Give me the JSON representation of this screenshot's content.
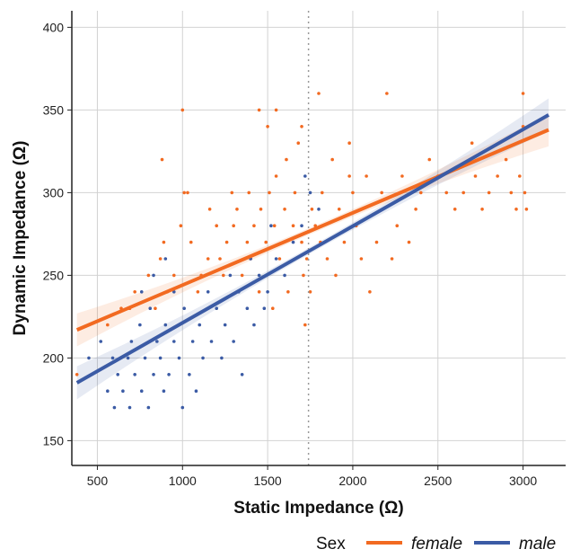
{
  "chart_data": {
    "type": "scatter",
    "xlabel": "Static Impedance (Ω)",
    "ylabel": "Dynamic Impedance (Ω)",
    "xlim": [
      350,
      3250
    ],
    "ylim": [
      135,
      410
    ],
    "x_ticks": [
      500,
      1000,
      1500,
      2000,
      2500,
      3000
    ],
    "y_ticks": [
      150,
      200,
      250,
      300,
      350,
      400
    ],
    "x_tick_labels": [
      "500",
      "1000",
      "1500",
      "2000",
      "2500",
      "3000"
    ],
    "y_tick_labels": [
      "150",
      "200",
      "250",
      "300",
      "350",
      "400"
    ],
    "grid": true,
    "legend_placement": "bottom",
    "legend_title": "Sex",
    "vline": {
      "x": 1740,
      "style": "dotted",
      "color": "#999999"
    },
    "series": [
      {
        "name": "female",
        "color": "#f26a21",
        "fit": {
          "x": [
            380,
            3150
          ],
          "y": [
            217,
            338
          ]
        },
        "points": [
          [
            380,
            190
          ],
          [
            560,
            220
          ],
          [
            640,
            230
          ],
          [
            690,
            230
          ],
          [
            720,
            240
          ],
          [
            800,
            250
          ],
          [
            840,
            230
          ],
          [
            870,
            260
          ],
          [
            880,
            320
          ],
          [
            890,
            270
          ],
          [
            910,
            240
          ],
          [
            950,
            250
          ],
          [
            990,
            280
          ],
          [
            1000,
            350
          ],
          [
            1010,
            300
          ],
          [
            1030,
            300
          ],
          [
            1050,
            270
          ],
          [
            1090,
            240
          ],
          [
            1110,
            250
          ],
          [
            1150,
            260
          ],
          [
            1160,
            290
          ],
          [
            1200,
            280
          ],
          [
            1220,
            260
          ],
          [
            1240,
            250
          ],
          [
            1260,
            270
          ],
          [
            1290,
            300
          ],
          [
            1300,
            280
          ],
          [
            1320,
            290
          ],
          [
            1350,
            250
          ],
          [
            1380,
            270
          ],
          [
            1390,
            300
          ],
          [
            1400,
            260
          ],
          [
            1420,
            280
          ],
          [
            1450,
            240
          ],
          [
            1460,
            290
          ],
          [
            1490,
            270
          ],
          [
            1500,
            340
          ],
          [
            1510,
            300
          ],
          [
            1530,
            230
          ],
          [
            1540,
            280
          ],
          [
            1550,
            310
          ],
          [
            1570,
            260
          ],
          [
            1600,
            290
          ],
          [
            1610,
            320
          ],
          [
            1620,
            240
          ],
          [
            1650,
            280
          ],
          [
            1660,
            300
          ],
          [
            1680,
            330
          ],
          [
            1700,
            270
          ],
          [
            1710,
            250
          ],
          [
            1720,
            220
          ],
          [
            1730,
            260
          ],
          [
            1750,
            240
          ],
          [
            1760,
            290
          ],
          [
            1780,
            280
          ],
          [
            1800,
            360
          ],
          [
            1810,
            270
          ],
          [
            1820,
            300
          ],
          [
            1850,
            260
          ],
          [
            1880,
            320
          ],
          [
            1900,
            250
          ],
          [
            1920,
            290
          ],
          [
            1950,
            270
          ],
          [
            1980,
            330
          ],
          [
            2000,
            300
          ],
          [
            2020,
            280
          ],
          [
            2050,
            260
          ],
          [
            2080,
            310
          ],
          [
            2100,
            240
          ],
          [
            2140,
            270
          ],
          [
            2170,
            300
          ],
          [
            2200,
            360
          ],
          [
            2230,
            260
          ],
          [
            2260,
            280
          ],
          [
            2290,
            310
          ],
          [
            2330,
            270
          ],
          [
            2370,
            290
          ],
          [
            2400,
            300
          ],
          [
            2450,
            320
          ],
          [
            2500,
            310
          ],
          [
            2550,
            300
          ],
          [
            2600,
            290
          ],
          [
            2650,
            300
          ],
          [
            2700,
            330
          ],
          [
            2720,
            310
          ],
          [
            2760,
            290
          ],
          [
            2800,
            300
          ],
          [
            2850,
            310
          ],
          [
            2900,
            320
          ],
          [
            2930,
            300
          ],
          [
            2960,
            290
          ],
          [
            2980,
            310
          ],
          [
            3000,
            340
          ],
          [
            3000,
            360
          ],
          [
            3010,
            300
          ],
          [
            3020,
            290
          ],
          [
            1450,
            350
          ],
          [
            1550,
            350
          ],
          [
            1700,
            340
          ],
          [
            1980,
            310
          ]
        ]
      },
      {
        "name": "male",
        "color": "#3b5ba5",
        "fit": {
          "x": [
            380,
            3150
          ],
          "y": [
            185,
            347
          ]
        },
        "points": [
          [
            450,
            200
          ],
          [
            520,
            210
          ],
          [
            560,
            180
          ],
          [
            590,
            200
          ],
          [
            600,
            170
          ],
          [
            620,
            190
          ],
          [
            650,
            180
          ],
          [
            680,
            200
          ],
          [
            690,
            170
          ],
          [
            700,
            210
          ],
          [
            720,
            190
          ],
          [
            750,
            220
          ],
          [
            760,
            180
          ],
          [
            780,
            200
          ],
          [
            800,
            170
          ],
          [
            810,
            230
          ],
          [
            830,
            190
          ],
          [
            850,
            210
          ],
          [
            870,
            200
          ],
          [
            890,
            180
          ],
          [
            900,
            220
          ],
          [
            920,
            190
          ],
          [
            950,
            210
          ],
          [
            980,
            200
          ],
          [
            1000,
            170
          ],
          [
            1010,
            230
          ],
          [
            1040,
            190
          ],
          [
            1060,
            210
          ],
          [
            1080,
            180
          ],
          [
            1100,
            220
          ],
          [
            1120,
            200
          ],
          [
            1150,
            240
          ],
          [
            1170,
            210
          ],
          [
            1200,
            230
          ],
          [
            1230,
            200
          ],
          [
            1250,
            220
          ],
          [
            1280,
            250
          ],
          [
            1300,
            210
          ],
          [
            1330,
            240
          ],
          [
            1350,
            190
          ],
          [
            1380,
            230
          ],
          [
            1400,
            260
          ],
          [
            1420,
            220
          ],
          [
            1450,
            250
          ],
          [
            1480,
            230
          ],
          [
            1500,
            240
          ],
          [
            1520,
            280
          ],
          [
            1550,
            260
          ],
          [
            1600,
            250
          ],
          [
            1650,
            270
          ],
          [
            1700,
            280
          ],
          [
            1720,
            310
          ],
          [
            1750,
            300
          ],
          [
            1800,
            290
          ],
          [
            760,
            240
          ],
          [
            830,
            250
          ],
          [
            900,
            260
          ],
          [
            950,
            240
          ]
        ]
      }
    ]
  }
}
